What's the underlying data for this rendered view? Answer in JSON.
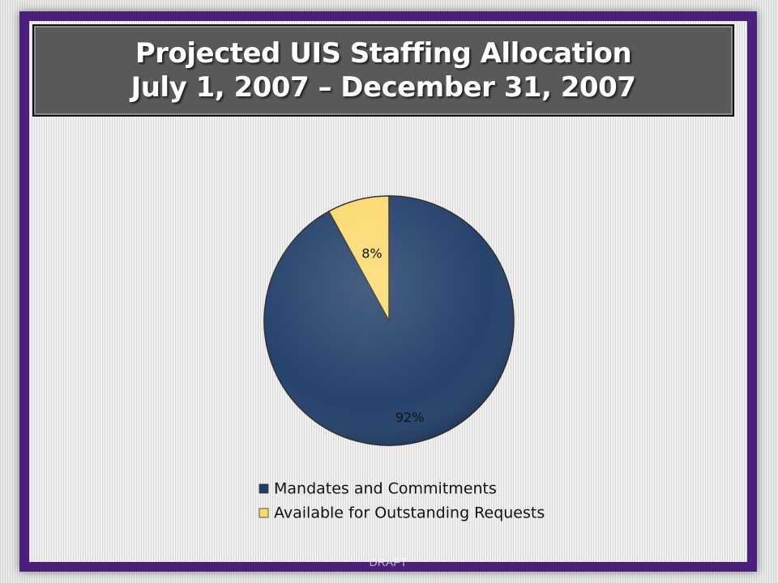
{
  "slide": {
    "title_line1": "Projected UIS Staffing Allocation",
    "title_line2": "July 1, 2007 – December 31, 2007",
    "footer": "DRAFT"
  },
  "colors": {
    "frame": "#4b1f7c",
    "title_bg": "#595959"
  },
  "chart_data": {
    "type": "pie",
    "series": [
      {
        "name": "Mandates and Commitments",
        "value": 92,
        "label": "92%",
        "color": "#1f3d68"
      },
      {
        "name": "Available for Outstanding Requests",
        "value": 8,
        "label": "8%",
        "color": "#fcd96b"
      }
    ],
    "legend_position": "bottom"
  }
}
